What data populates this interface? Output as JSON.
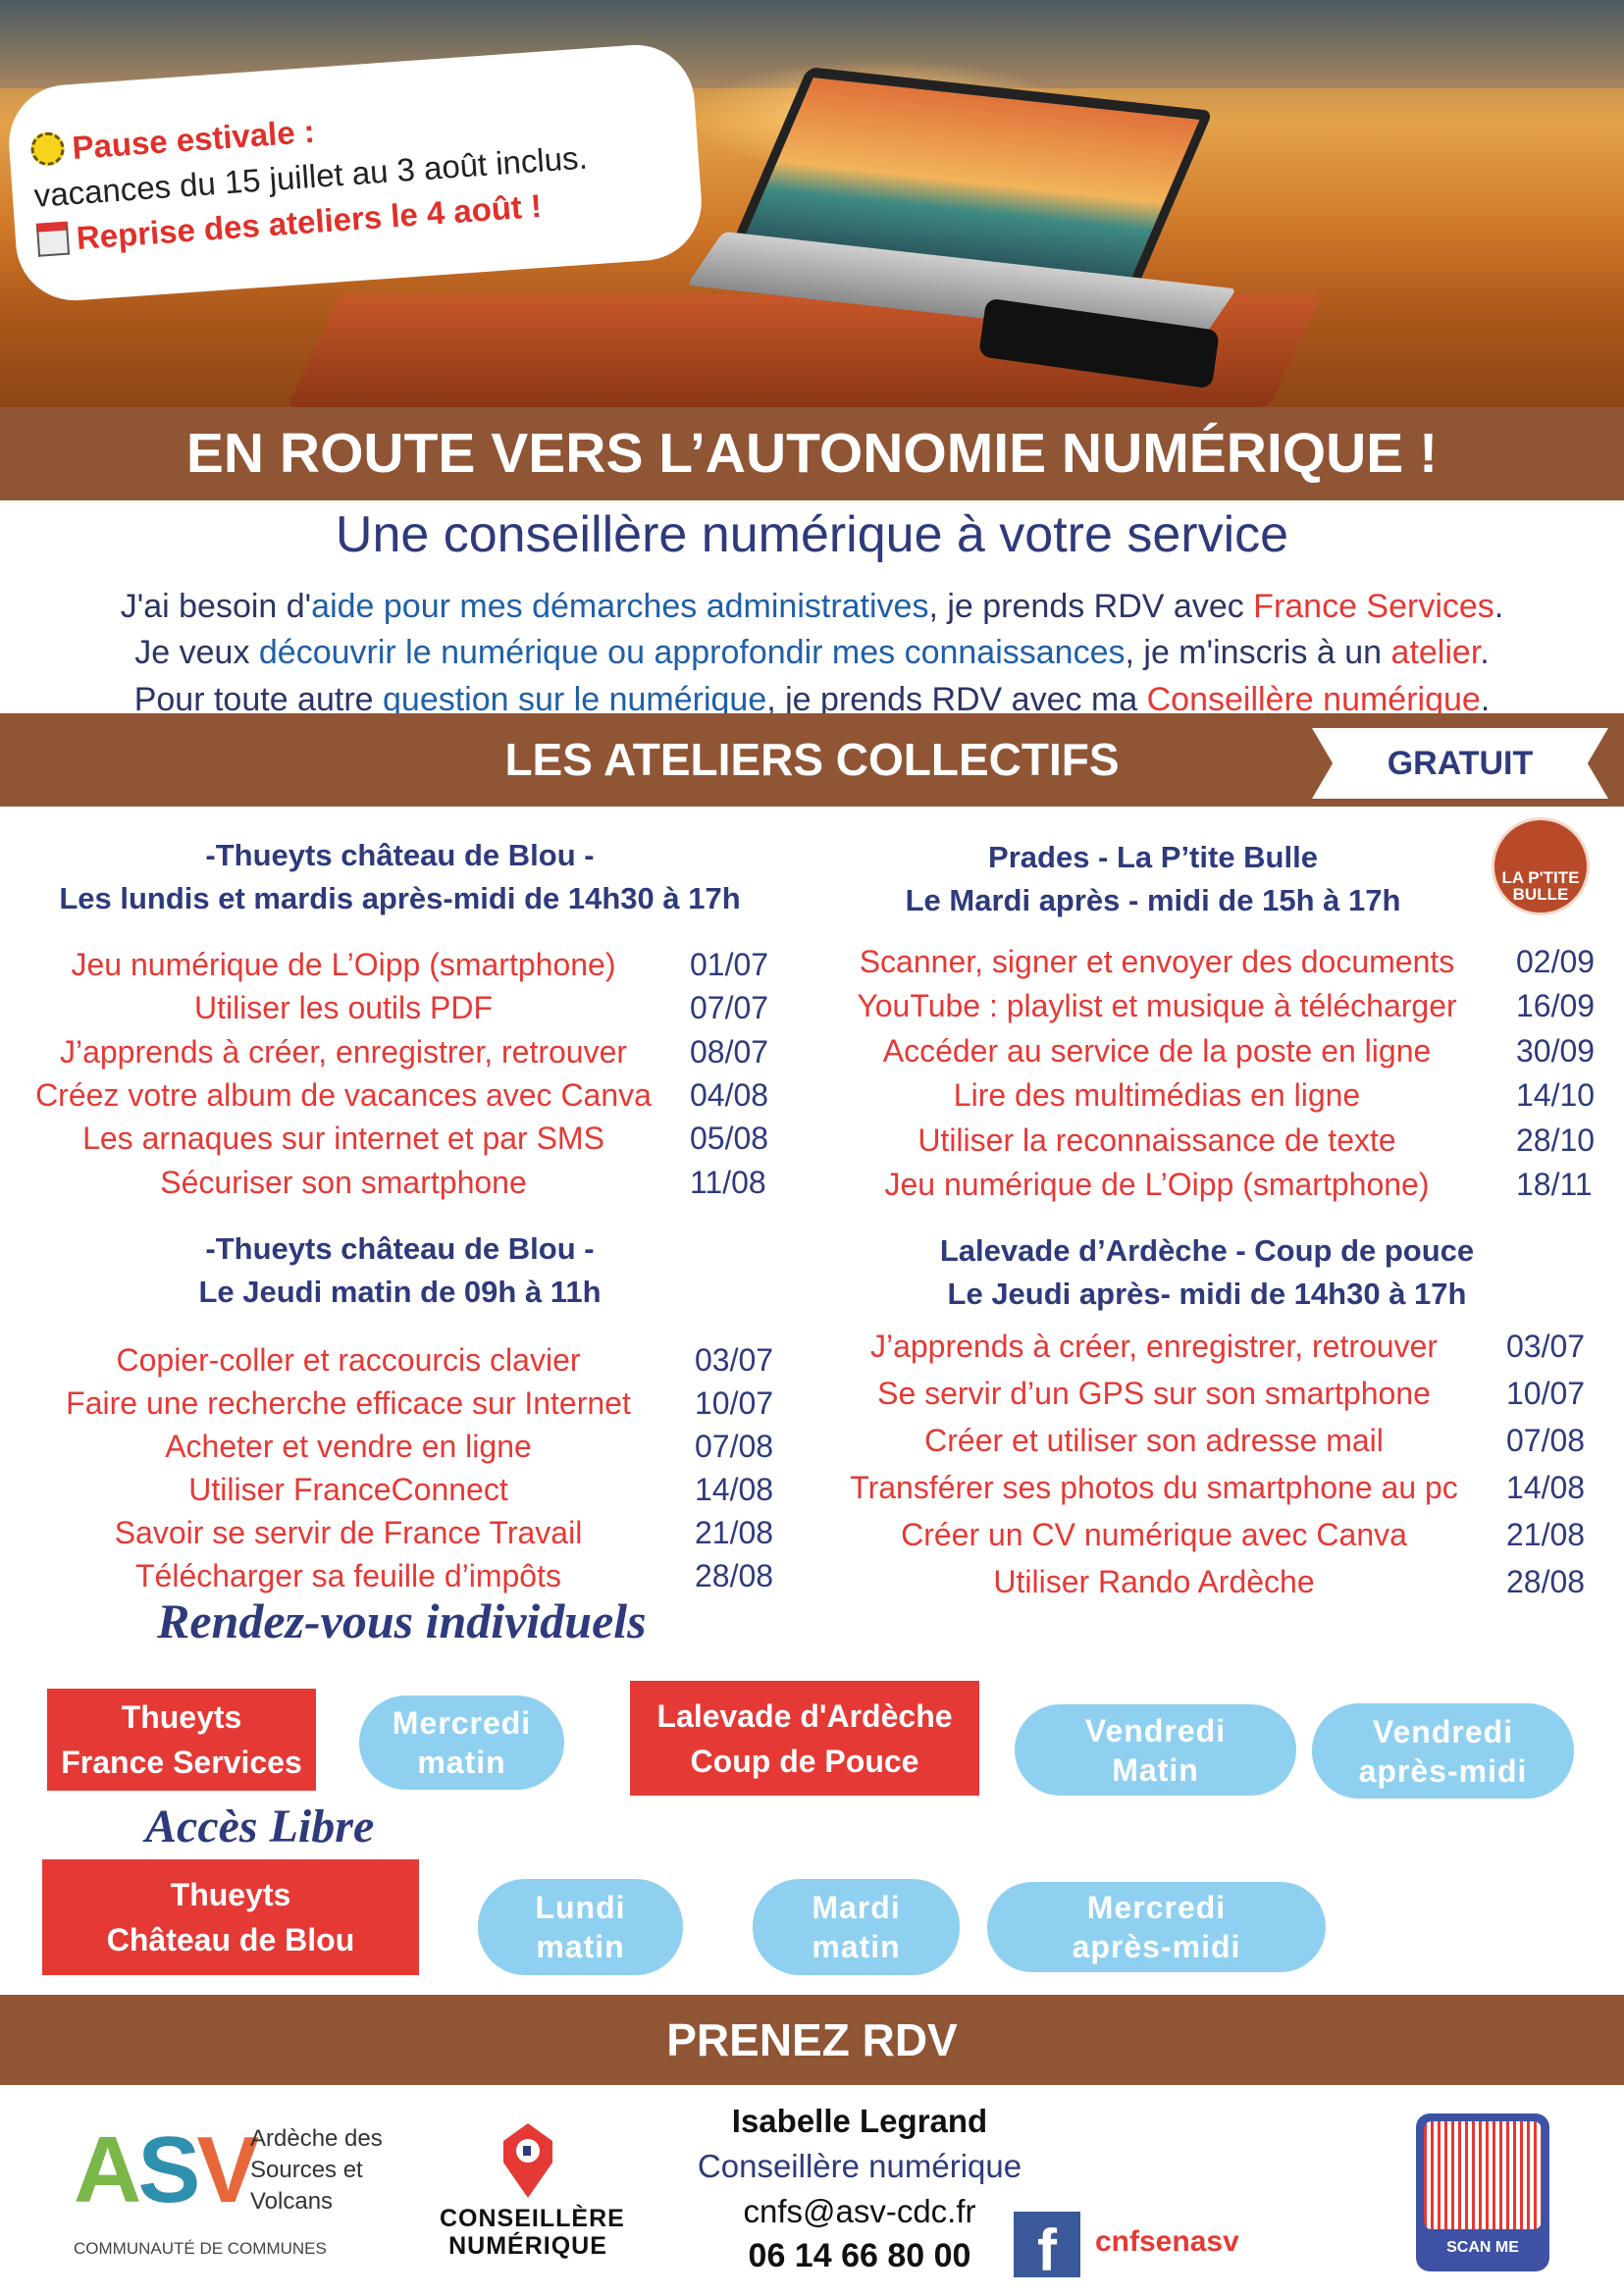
{
  "notice": {
    "title": "Pause estivale :",
    "dates": "vacances du 15 juillet au 3 août inclus.",
    "resume": "Reprise des ateliers le 4 août !",
    "icons": [
      "sun-icon",
      "calendar-icon"
    ]
  },
  "header": {
    "title": "EN ROUTE VERS L’AUTONOMIE NUMÉRIQUE !",
    "subtitle": "Une conseillère numérique à votre service"
  },
  "intro": [
    [
      {
        "t": "J'ai besoin d'",
        "c": "plain"
      },
      {
        "t": "aide pour mes démarches administratives",
        "c": "blue"
      },
      {
        "t": ", je prends RDV avec ",
        "c": "plain"
      },
      {
        "t": "France Services",
        "c": "red"
      },
      {
        "t": ".",
        "c": "plain"
      }
    ],
    [
      {
        "t": "Je veux ",
        "c": "plain"
      },
      {
        "t": "découvrir le numérique ou approfondir mes connaissances",
        "c": "blue"
      },
      {
        "t": ", je m'inscris à un ",
        "c": "plain"
      },
      {
        "t": "atelier",
        "c": "red"
      },
      {
        "t": ".",
        "c": "plain"
      }
    ],
    [
      {
        "t": "Pour toute autre ",
        "c": "plain"
      },
      {
        "t": "question sur le numérique",
        "c": "blue"
      },
      {
        "t": ", je prends RDV avec ma ",
        "c": "plain"
      },
      {
        "t": "Conseillère numérique",
        "c": "red"
      },
      {
        "t": ".",
        "c": "plain"
      }
    ]
  ],
  "ateliers": {
    "title": "LES ATELIERS COLLECTIFS",
    "badge": "GRATUIT",
    "groups": [
      {
        "place": "-Thueyts château de Blou -",
        "schedule": "Les lundis et mardis après-midi de 14h30 à 17h",
        "items": [
          [
            "Jeu numérique de L’Oipp (smartphone)",
            "01/07"
          ],
          [
            "Utiliser les outils PDF",
            "07/07"
          ],
          [
            "J’apprends à créer, enregistrer, retrouver",
            "08/07"
          ],
          [
            "Créez votre album de vacances avec Canva",
            "04/08"
          ],
          [
            "Les arnaques sur internet et par SMS",
            "05/08"
          ],
          [
            "Sécuriser son smartphone",
            "11/08"
          ]
        ]
      },
      {
        "place": "Prades - La P’tite Bulle",
        "schedule": "Le Mardi après - midi de 15h à 17h",
        "logo": "LA P'TITE BULLE",
        "items": [
          [
            "Scanner, signer et envoyer des documents",
            "02/09"
          ],
          [
            "YouTube : playlist et musique à télécharger",
            "16/09"
          ],
          [
            "Accéder au service de la poste en ligne",
            "30/09"
          ],
          [
            "Lire des multimédias en ligne",
            "14/10"
          ],
          [
            "Utiliser la reconnaissance de texte",
            "28/10"
          ],
          [
            "Jeu numérique de L’Oipp (smartphone)",
            "18/11"
          ]
        ]
      },
      {
        "place": "-Thueyts château de Blou -",
        "schedule": "Le Jeudi matin de 09h à 11h",
        "items": [
          [
            "Copier-coller et raccourcis clavier",
            "03/07"
          ],
          [
            "Faire une recherche efficace sur Internet",
            "10/07"
          ],
          [
            "Acheter et vendre en ligne",
            "07/08"
          ],
          [
            "Utiliser FranceConnect",
            "14/08"
          ],
          [
            "Savoir se servir de France Travail",
            "21/08"
          ],
          [
            "Télécharger sa feuille d’impôts",
            "28/08"
          ]
        ]
      },
      {
        "place": "Lalevade d’Ardèche - Coup de pouce",
        "schedule": "Le Jeudi après- midi de 14h30 à 17h",
        "items": [
          [
            "J’apprends à créer, enregistrer, retrouver",
            "03/07"
          ],
          [
            "Se servir d’un GPS sur son smartphone",
            "10/07"
          ],
          [
            "Créer et utiliser son adresse mail",
            "07/08"
          ],
          [
            "Transférer ses photos du smartphone au pc",
            "14/08"
          ],
          [
            "Créer un CV numérique avec Canva",
            "21/08"
          ],
          [
            "Utiliser Rando Ardèche",
            "28/08"
          ]
        ]
      }
    ]
  },
  "rdv": {
    "title": "Rendez-vous individuels",
    "places": [
      {
        "l1": "Thueyts",
        "l2": "France Services",
        "slots": [
          [
            "Mercredi",
            "matin"
          ]
        ]
      },
      {
        "l1": "Lalevade d'Ardèche",
        "l2": "Coup de Pouce",
        "slots": [
          [
            "Vendredi",
            "Matin"
          ],
          [
            "Vendredi",
            "après-midi"
          ]
        ]
      }
    ]
  },
  "libre": {
    "title": "Accès Libre",
    "place": {
      "l1": "Thueyts",
      "l2": "Château de Blou"
    },
    "slots": [
      [
        "Lundi",
        "matin"
      ],
      [
        "Mardi",
        "matin"
      ],
      [
        "Mercredi",
        "après-midi"
      ]
    ]
  },
  "footer": {
    "band": "PRENEZ RDV",
    "asv_logo": {
      "letters": "ASV",
      "lines": [
        "Ardèche des",
        "Sources et",
        "Volcans"
      ],
      "caption": "COMMUNAUTÉ DE COMMUNES"
    },
    "cn_logo": [
      "CONSEILLÈRE",
      "NUMÉRIQUE"
    ],
    "name": "Isabelle Legrand",
    "role": "Conseillère numérique",
    "email": "cnfs@asv-cdc.fr",
    "phone": "06 14 66 80 00",
    "facebook": "cnfsenasv",
    "qr_label": "SCAN ME"
  },
  "colors": {
    "brown": "#8f5535",
    "navy": "#2e3a7c",
    "red": "#e53935",
    "blue": "#1f5fa8",
    "pill": "#8fd0f0"
  }
}
